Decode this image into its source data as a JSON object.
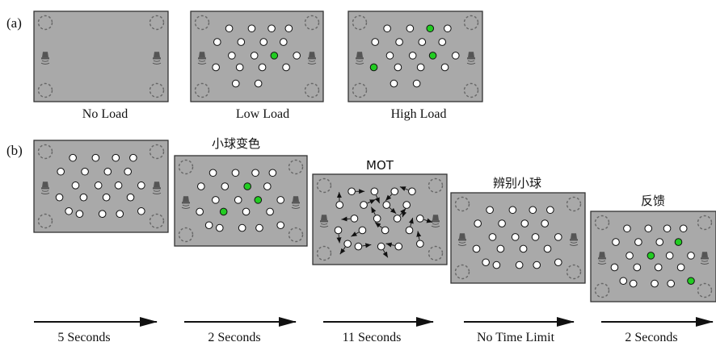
{
  "part_a": {
    "label": "(a)",
    "panels": [
      {
        "caption": "No Load"
      },
      {
        "caption": "Low Load"
      },
      {
        "caption": "High Load"
      }
    ]
  },
  "part_b": {
    "label": "(b)",
    "panels": [
      {
        "title": "",
        "duration": "5 Seconds"
      },
      {
        "title": "小球变色",
        "duration": "2 Seconds"
      },
      {
        "title": "MOT",
        "duration": "11 Seconds"
      },
      {
        "title": "辨别小球",
        "duration": "No Time Limit"
      },
      {
        "title": "反馈",
        "duration": "2 Seconds"
      }
    ]
  },
  "colors": {
    "panel_fill": "#a9a9a9",
    "ball_fill": "#ffffff",
    "target_fill": "#22cc22",
    "corner_circle_stroke": "#666666",
    "speaker": "#555555"
  },
  "icons": {
    "speaker": "speaker-icon",
    "corner": "dashed-circle-icon",
    "arrow": "arrow-right-icon"
  }
}
